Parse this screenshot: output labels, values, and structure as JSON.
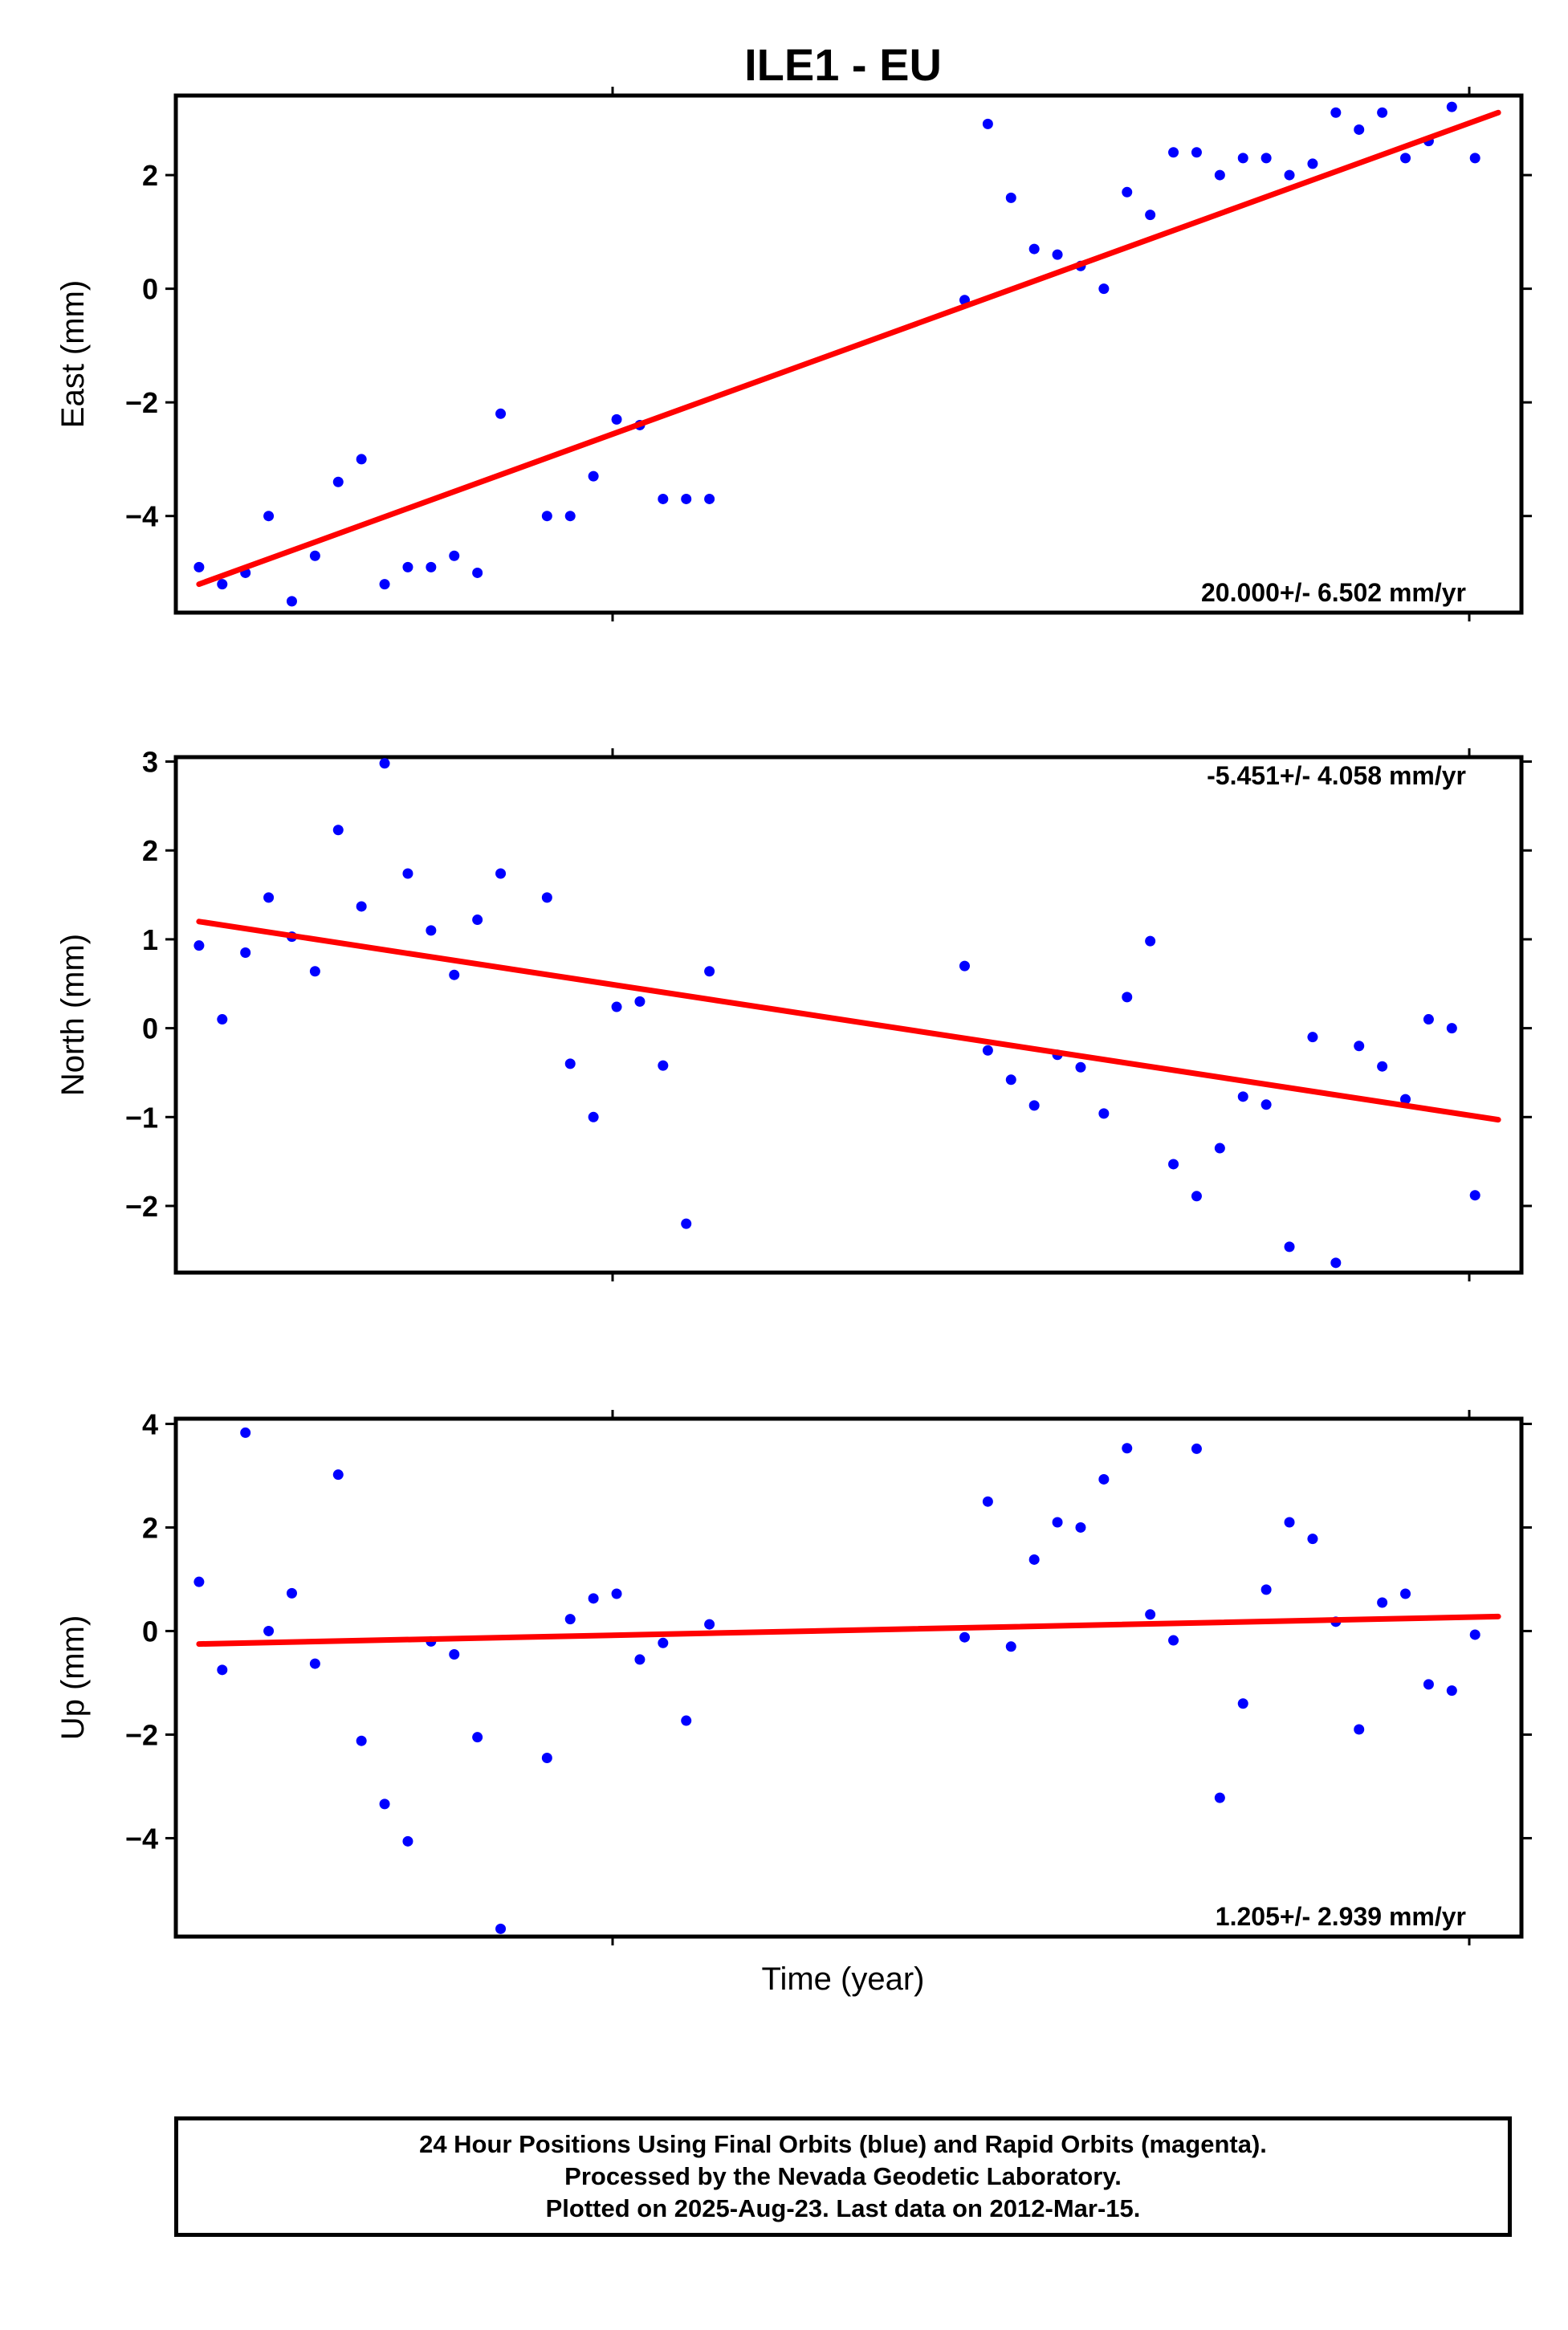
{
  "figure": {
    "title": "ILE1 - EU",
    "xlabel": "Time (year)",
    "footer": {
      "line1": "24 Hour Positions Using Final Orbits (blue) and Rapid Orbits (magenta).",
      "line2": "Processed by the Nevada Geodetic Laboratory.",
      "line3": "Plotted on 2025-Aug-23. Last data on 2012-Mar-15."
    }
  },
  "colors": {
    "points": "#0000ff",
    "fit": "#ff0000",
    "frame": "#000000"
  },
  "chart_data": [
    {
      "type": "scatter",
      "ylabel": "East (mm)",
      "ylim": [
        -5.7,
        3.4
      ],
      "yticks": [
        -4,
        -2,
        0,
        2
      ],
      "rate_label": "20.000+/- 6.502 mm/yr",
      "rate_position": "bottom-right",
      "x": [
        0.01,
        0.02,
        0.03,
        0.04,
        0.05,
        0.06,
        0.07,
        0.08,
        0.09,
        0.1,
        0.11,
        0.12,
        0.13,
        0.14,
        0.16,
        0.17,
        0.18,
        0.19,
        0.2,
        0.21,
        0.22,
        0.23,
        0.34,
        0.35,
        0.36,
        0.37,
        0.38,
        0.39,
        0.4,
        0.41,
        0.42,
        0.43,
        0.44,
        0.45,
        0.46,
        0.47,
        0.48,
        0.49,
        0.5,
        0.51,
        0.52,
        0.53,
        0.54,
        0.55,
        0.56
      ],
      "y": [
        -4.9,
        -5.2,
        -5.0,
        -4.0,
        -5.5,
        -4.7,
        -3.4,
        -3.0,
        -5.2,
        -4.9,
        -4.9,
        -4.7,
        -5.0,
        -2.2,
        -4.0,
        -4.0,
        -3.3,
        -2.3,
        -2.4,
        -3.7,
        -3.7,
        -3.7,
        -0.2,
        2.9,
        1.6,
        0.7,
        0.6,
        0.4,
        0.0,
        1.7,
        1.3,
        2.4,
        2.4,
        2.0,
        2.3,
        2.3,
        2.0,
        2.2,
        3.1,
        2.8,
        3.1,
        2.3,
        2.6,
        3.2,
        2.3
      ],
      "fit": {
        "x": [
          0.01,
          0.57
        ],
        "y": [
          -5.2,
          3.1
        ]
      }
    },
    {
      "type": "scatter",
      "ylabel": "North (mm)",
      "ylim": [
        -2.75,
        3.05
      ],
      "yticks": [
        -2,
        -1,
        0,
        1,
        2,
        3
      ],
      "rate_label": "-5.451+/- 4.058 mm/yr",
      "rate_position": "top-right",
      "x": [
        0.01,
        0.02,
        0.03,
        0.04,
        0.05,
        0.06,
        0.07,
        0.08,
        0.09,
        0.1,
        0.11,
        0.12,
        0.13,
        0.14,
        0.16,
        0.17,
        0.18,
        0.19,
        0.2,
        0.21,
        0.22,
        0.23,
        0.34,
        0.35,
        0.36,
        0.37,
        0.38,
        0.39,
        0.4,
        0.41,
        0.42,
        0.43,
        0.44,
        0.45,
        0.46,
        0.47,
        0.48,
        0.49,
        0.5,
        0.51,
        0.52,
        0.53,
        0.54,
        0.55,
        0.56
      ],
      "y": [
        0.93,
        0.1,
        0.85,
        1.47,
        1.03,
        0.64,
        2.23,
        1.37,
        2.98,
        1.74,
        1.1,
        0.6,
        1.22,
        1.74,
        1.47,
        -0.4,
        -1.0,
        0.24,
        0.3,
        -0.42,
        -2.2,
        0.64,
        0.7,
        -0.25,
        -0.58,
        -0.87,
        -0.3,
        -0.44,
        -0.96,
        0.35,
        0.98,
        -1.53,
        -1.89,
        -1.35,
        -0.77,
        -0.86,
        -2.46,
        -0.1,
        -2.64,
        -0.2,
        -0.43,
        -0.8,
        0.1,
        0.0,
        -1.88
      ],
      "fit": {
        "x": [
          0.01,
          0.57
        ],
        "y": [
          1.2,
          -1.03
        ]
      }
    },
    {
      "type": "scatter",
      "ylabel": "Up (mm)",
      "ylim": [
        -5.9,
        4.1
      ],
      "yticks": [
        -4,
        -2,
        0,
        2,
        4
      ],
      "rate_label": "1.205+/- 2.939 mm/yr",
      "rate_position": "bottom-right",
      "x": [
        0.01,
        0.02,
        0.03,
        0.04,
        0.05,
        0.06,
        0.07,
        0.08,
        0.09,
        0.1,
        0.11,
        0.12,
        0.13,
        0.14,
        0.16,
        0.17,
        0.18,
        0.19,
        0.2,
        0.21,
        0.22,
        0.23,
        0.34,
        0.35,
        0.36,
        0.37,
        0.38,
        0.39,
        0.4,
        0.41,
        0.42,
        0.43,
        0.44,
        0.45,
        0.46,
        0.47,
        0.48,
        0.49,
        0.5,
        0.51,
        0.52,
        0.53,
        0.54,
        0.55,
        0.56
      ],
      "y": [
        0.95,
        -0.75,
        3.83,
        0.0,
        0.73,
        -0.63,
        3.02,
        -2.12,
        -3.34,
        -4.06,
        -0.2,
        -0.45,
        -2.05,
        -5.75,
        -2.45,
        0.23,
        0.63,
        0.72,
        -0.55,
        -0.23,
        -1.73,
        0.13,
        -0.12,
        2.5,
        -0.3,
        1.38,
        2.1,
        2.0,
        2.93,
        3.53,
        0.32,
        -0.18,
        3.52,
        -3.22,
        -1.4,
        0.8,
        2.1,
        1.78,
        0.18,
        -1.9,
        0.55,
        0.72,
        -1.03,
        -1.15,
        -0.07
      ],
      "fit": {
        "x": [
          0.01,
          0.57
        ],
        "y": [
          -0.25,
          0.28
        ]
      }
    }
  ]
}
